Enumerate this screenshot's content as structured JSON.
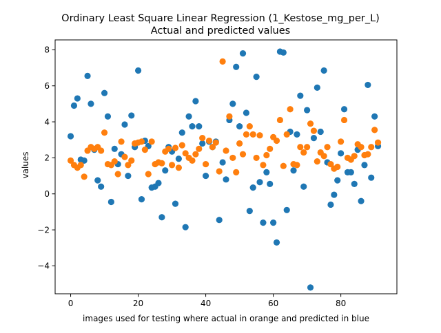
{
  "chart_data": {
    "type": "scatter",
    "title": "Ordinary Least Square Linear Regression (1_Kestose_mg_per_L)",
    "subtitle": "Actual and predicted values",
    "xlabel": "images used for testing where actual in orange and predicted in blue",
    "ylabel": "values",
    "xlim": [
      -4.6,
      96.6
    ],
    "ylim": [
      -5.55,
      8.55
    ],
    "x_ticks": [
      0,
      20,
      40,
      60,
      80
    ],
    "y_ticks": [
      -4,
      -2,
      0,
      2,
      4,
      6,
      8
    ],
    "grid": false,
    "legend": "none",
    "x": [
      0,
      1,
      2,
      3,
      4,
      5,
      6,
      7,
      8,
      9,
      10,
      11,
      12,
      13,
      14,
      15,
      16,
      17,
      18,
      19,
      20,
      21,
      22,
      23,
      24,
      25,
      26,
      27,
      28,
      29,
      30,
      31,
      32,
      33,
      34,
      35,
      36,
      37,
      38,
      39,
      40,
      41,
      42,
      43,
      44,
      45,
      46,
      47,
      48,
      49,
      50,
      51,
      52,
      53,
      54,
      55,
      56,
      57,
      58,
      59,
      60,
      61,
      62,
      63,
      64,
      65,
      66,
      67,
      68,
      69,
      70,
      71,
      72,
      73,
      74,
      75,
      76,
      77,
      78,
      79,
      80,
      81,
      82,
      83,
      84,
      85,
      86,
      87,
      88,
      89,
      90,
      91
    ],
    "series": [
      {
        "color": "#1f77b4",
        "marker": "circle",
        "values": [
          3.2,
          4.9,
          5.3,
          1.9,
          1.85,
          6.55,
          5.0,
          2.45,
          0.75,
          0.4,
          5.6,
          4.3,
          -0.45,
          2.5,
          1.65,
          2.2,
          3.85,
          1.0,
          4.35,
          2.6,
          6.85,
          -0.3,
          2.95,
          2.65,
          0.35,
          0.4,
          0.6,
          -1.3,
          1.3,
          2.6,
          2.35,
          -0.55,
          1.95,
          3.4,
          -1.85,
          4.3,
          3.75,
          5.15,
          3.75,
          2.8,
          1.0,
          2.9,
          2.6,
          2.9,
          -1.45,
          1.75,
          0.8,
          4.1,
          5.0,
          7.05,
          3.75,
          7.8,
          4.5,
          -0.95,
          0.35,
          6.5,
          0.65,
          -1.6,
          1.2,
          0.55,
          -1.6,
          -2.7,
          7.9,
          7.85,
          -0.9,
          3.45,
          1.3,
          3.3,
          5.45,
          0.4,
          4.65,
          -5.2,
          3.1,
          5.9,
          3.45,
          6.85,
          1.75,
          -0.6,
          -0.05,
          0.75,
          2.25,
          4.7,
          1.2,
          1.2,
          0.55,
          2.45,
          -0.4,
          1.6,
          6.05,
          0.9,
          4.3,
          2.65
        ]
      },
      {
        "color": "#ff7f0e",
        "marker": "circle",
        "values": [
          1.85,
          1.6,
          1.45,
          1.6,
          0.95,
          2.4,
          2.6,
          2.5,
          2.6,
          2.4,
          3.4,
          1.65,
          1.6,
          1.8,
          1.1,
          2.9,
          2.05,
          1.6,
          1.85,
          2.8,
          2.85,
          2.9,
          2.45,
          1.1,
          2.9,
          1.65,
          1.75,
          1.7,
          2.35,
          2.5,
          1.6,
          2.55,
          1.45,
          2.7,
          2.25,
          2.0,
          1.85,
          2.2,
          2.5,
          3.1,
          1.65,
          2.95,
          2.6,
          2.85,
          1.25,
          7.35,
          2.4,
          4.3,
          2.0,
          1.2,
          2.8,
          2.2,
          3.3,
          3.75,
          3.3,
          2.0,
          3.25,
          1.6,
          2.15,
          2.5,
          3.15,
          2.95,
          4.1,
          1.55,
          3.3,
          4.7,
          1.65,
          1.6,
          2.6,
          2.3,
          2.6,
          3.9,
          3.5,
          1.8,
          2.3,
          2.1,
          2.6,
          1.65,
          1.4,
          1.5,
          2.9,
          4.1,
          2.0,
          1.9,
          2.1,
          2.75,
          2.6,
          2.15,
          2.2,
          2.6,
          3.55,
          2.85
        ]
      }
    ]
  }
}
